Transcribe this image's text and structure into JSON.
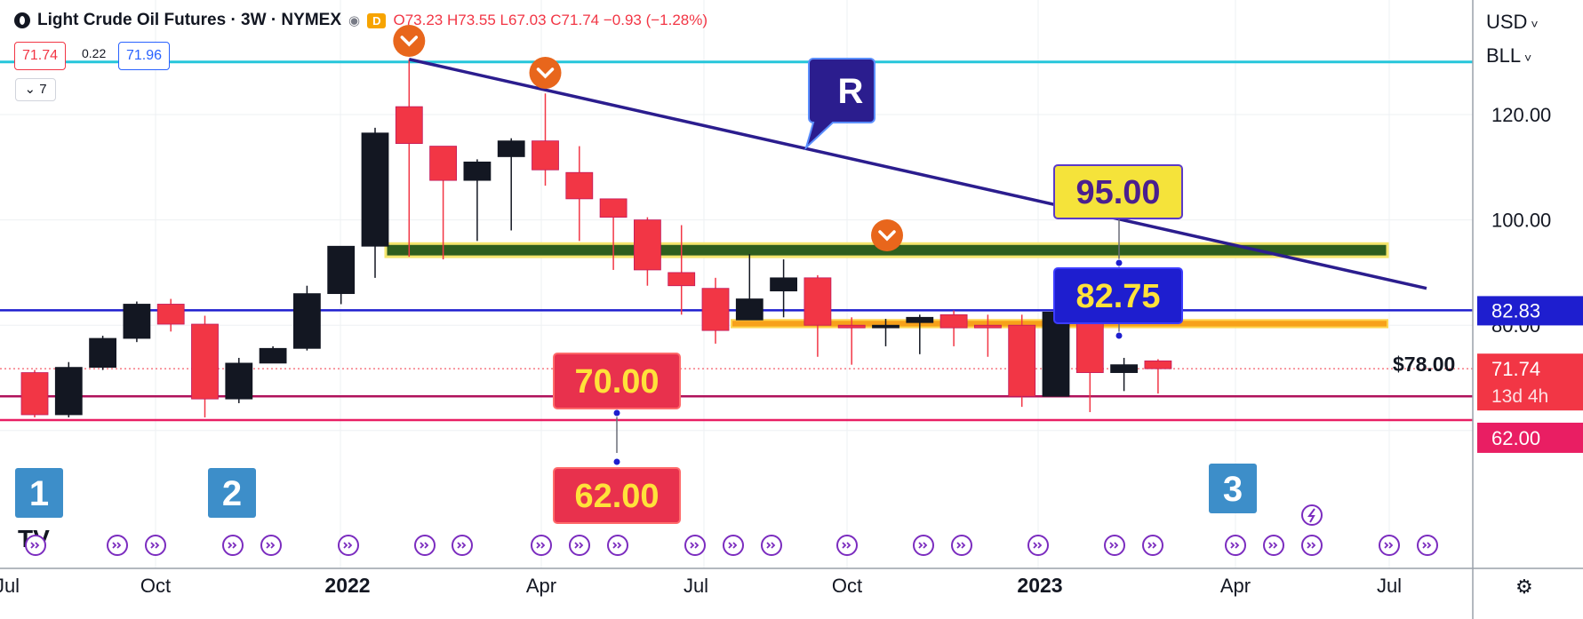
{
  "legend": {
    "title": "Light Crude Oil Futures · 3W · NYMEX",
    "eye_icon": "eye-icon",
    "delayed_badge": "D",
    "o": "O73.23",
    "h": "H73.55",
    "l": "L67.03",
    "c": "C71.74",
    "change": "−0.93 (−1.28%)",
    "sell_price": "71.74",
    "spread": "0.22",
    "buy_price": "71.96",
    "indicators_count": "7"
  },
  "right_controls": {
    "currency": "USD",
    "unit": "BLL"
  },
  "colors": {
    "up": "#131722",
    "down": "#f23645",
    "trendline": "#2b1d8e",
    "navy_line": "#1e1ecf",
    "teal_line": "#26c6da",
    "maroon_line": "#b0125b",
    "pink_line": "#e91e63",
    "zone_green": "#2e5e1e",
    "zone_border": "#f5e66e",
    "zone_orange": "#f7a11a",
    "event_purple": "#7b2cbf"
  },
  "annotations": {
    "r_label": "R",
    "label_95": "95.00",
    "label_82_75": "82.75",
    "label_70": "70.00",
    "label_62": "62.00",
    "label_78": "$78.00",
    "count_1": "1",
    "count_2": "2",
    "count_3": "3",
    "tv_logo": "TV"
  },
  "price_axis": {
    "ticks": [
      "120.00",
      "100.00",
      "80.00"
    ],
    "tag_82_83": "82.83",
    "tag_last": "71.74",
    "tag_countdown": "13d 4h",
    "tag_62": "62.00"
  },
  "time_axis": {
    "ticks": [
      "Jul",
      "Oct",
      "2022",
      "Apr",
      "Jul",
      "Oct",
      "2023",
      "Apr",
      "Jul"
    ]
  },
  "event_icon": "dividend-arrow-icon",
  "settings_icon": "settings-icon",
  "chart_data": {
    "type": "candlestick",
    "title": "Light Crude Oil Futures · 3W · NYMEX",
    "interval": "3W",
    "ylim": [
      57,
      138
    ],
    "candles": [
      {
        "o": 71.0,
        "h": 71.5,
        "l": 62.5,
        "c": 63.0
      },
      {
        "o": 63.0,
        "h": 73.0,
        "l": 62.5,
        "c": 72.0
      },
      {
        "o": 72.0,
        "h": 78.0,
        "l": 71.5,
        "c": 77.5
      },
      {
        "o": 77.5,
        "h": 84.5,
        "l": 76.8,
        "c": 84.0
      },
      {
        "o": 84.0,
        "h": 85.0,
        "l": 78.8,
        "c": 80.2
      },
      {
        "o": 80.2,
        "h": 81.8,
        "l": 62.5,
        "c": 66.0
      },
      {
        "o": 66.0,
        "h": 73.8,
        "l": 65.2,
        "c": 72.8
      },
      {
        "o": 72.8,
        "h": 76.0,
        "l": 73.0,
        "c": 75.6
      },
      {
        "o": 75.6,
        "h": 87.5,
        "l": 75.2,
        "c": 86.0
      },
      {
        "o": 86.0,
        "h": 95.0,
        "l": 84.0,
        "c": 95.0
      },
      {
        "o": 95.0,
        "h": 117.5,
        "l": 89.0,
        "c": 116.5
      },
      {
        "o": 121.5,
        "h": 130.5,
        "l": 93.0,
        "c": 114.5
      },
      {
        "o": 114.0,
        "h": 114.0,
        "l": 92.5,
        "c": 107.5
      },
      {
        "o": 107.5,
        "h": 111.5,
        "l": 96.0,
        "c": 111.0
      },
      {
        "o": 112.0,
        "h": 115.5,
        "l": 98.0,
        "c": 115.0
      },
      {
        "o": 115.0,
        "h": 124.0,
        "l": 106.5,
        "c": 109.5
      },
      {
        "o": 109.0,
        "h": 114.0,
        "l": 96.0,
        "c": 104.0
      },
      {
        "o": 104.0,
        "h": 104.0,
        "l": 90.5,
        "c": 100.5
      },
      {
        "o": 100.0,
        "h": 100.5,
        "l": 87.5,
        "c": 90.5
      },
      {
        "o": 90.0,
        "h": 99.0,
        "l": 82.0,
        "c": 87.5
      },
      {
        "o": 87.0,
        "h": 89.0,
        "l": 76.5,
        "c": 79.0
      },
      {
        "o": 81.0,
        "h": 93.5,
        "l": 81.5,
        "c": 85.0
      },
      {
        "o": 86.5,
        "h": 92.5,
        "l": 81.5,
        "c": 89.0
      },
      {
        "o": 89.0,
        "h": 89.5,
        "l": 74.0,
        "c": 80.0
      },
      {
        "o": 80.0,
        "h": 81.5,
        "l": 72.5,
        "c": 79.5
      },
      {
        "o": 79.5,
        "h": 81.2,
        "l": 76.0,
        "c": 80.0
      },
      {
        "o": 80.5,
        "h": 82.0,
        "l": 74.5,
        "c": 81.5
      },
      {
        "o": 82.0,
        "h": 82.8,
        "l": 76.0,
        "c": 79.5
      },
      {
        "o": 80.0,
        "h": 82.0,
        "l": 74.0,
        "c": 79.5
      },
      {
        "o": 80.0,
        "h": 82.0,
        "l": 64.5,
        "c": 66.5
      },
      {
        "o": 66.5,
        "h": 83.5,
        "l": 66.5,
        "c": 82.5
      },
      {
        "o": 82.5,
        "h": 83.0,
        "l": 63.5,
        "c": 71.0
      },
      {
        "o": 71.0,
        "h": 73.8,
        "l": 67.5,
        "c": 72.5
      },
      {
        "o": 73.23,
        "h": 73.55,
        "l": 67.03,
        "c": 71.74
      }
    ],
    "horizontal_lines": [
      {
        "price": 130.0,
        "color": "#26c6da"
      },
      {
        "price": 82.83,
        "color": "#1e1ecf"
      },
      {
        "price": 66.5,
        "color": "#b0125b"
      },
      {
        "price": 62.0,
        "color": "#e91e63"
      }
    ],
    "zones": [
      {
        "from": 93.0,
        "to": 95.5,
        "label": "95.00",
        "color": "#2e5e1e"
      },
      {
        "from": 79.6,
        "to": 81.0,
        "label": "$78.00",
        "color": "#f7a11a"
      }
    ],
    "trendline": {
      "from_price": 130.5,
      "to_price": 87.0,
      "label": "R"
    },
    "last_price": 71.74
  }
}
